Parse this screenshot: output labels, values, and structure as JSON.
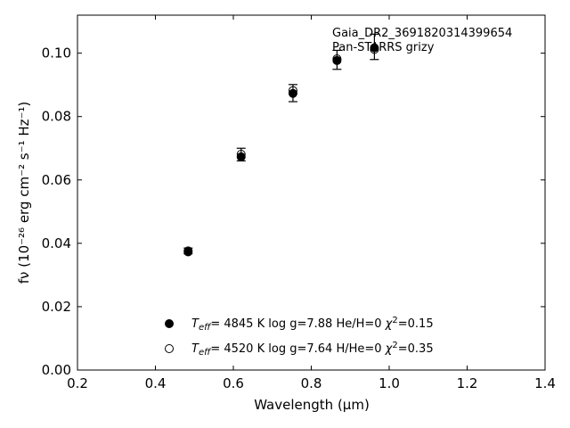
{
  "chart_data": {
    "type": "scatter",
    "xlabel": "Wavelength (μm)",
    "ylabel": "fν (10⁻²⁶ erg cm⁻² s⁻¹ Hz⁻¹)",
    "xlim": [
      0.2,
      1.4
    ],
    "ylim": [
      0.0,
      0.112
    ],
    "x_ticks": [
      0.2,
      0.4,
      0.6,
      0.8,
      1.0,
      1.2,
      1.4
    ],
    "x_tick_labels": [
      "0.2",
      "0.4",
      "0.6",
      "0.8",
      "1.0",
      "1.2",
      "1.4"
    ],
    "y_ticks": [
      0.0,
      0.02,
      0.04,
      0.06,
      0.08,
      0.1
    ],
    "y_tick_labels": [
      "0.00",
      "0.02",
      "0.04",
      "0.06",
      "0.08",
      "0.10"
    ],
    "grid": false,
    "annotations": [
      "Gaia_DR2_3691820314399654",
      "Pan-STARRS grizy"
    ],
    "series": [
      {
        "name": "T_eff= 4845 K log g=7.88 He/H=0 χ²=0.15",
        "marker": "filled",
        "x": [
          0.484,
          0.62,
          0.753,
          0.866,
          0.962
        ],
        "y": [
          0.0373,
          0.0673,
          0.0873,
          0.0977,
          0.1017
        ]
      },
      {
        "name": "T_eff= 4520 K log g=7.64 H/He=0 χ²=0.35",
        "marker": "open",
        "x": [
          0.484,
          0.62,
          0.753,
          0.866,
          0.962
        ],
        "y": [
          0.0376,
          0.0681,
          0.0882,
          0.0982,
          0.1012
        ]
      }
    ],
    "observed": {
      "x": [
        0.484,
        0.62,
        0.753,
        0.866,
        0.962
      ],
      "y": [
        0.0376,
        0.068,
        0.0874,
        0.0979,
        0.102
      ],
      "yerr": [
        0.0009,
        0.002,
        0.0027,
        0.003,
        0.004
      ]
    }
  },
  "legend": {
    "entries": [
      {
        "teff_value": "4845 K",
        "logg": "log g=7.88",
        "comp": "He/H=0",
        "chi": "=0.15"
      },
      {
        "teff_value": "4520 K",
        "logg": "log g=7.64",
        "comp": "H/He=0",
        "chi": "=0.35"
      }
    ]
  }
}
